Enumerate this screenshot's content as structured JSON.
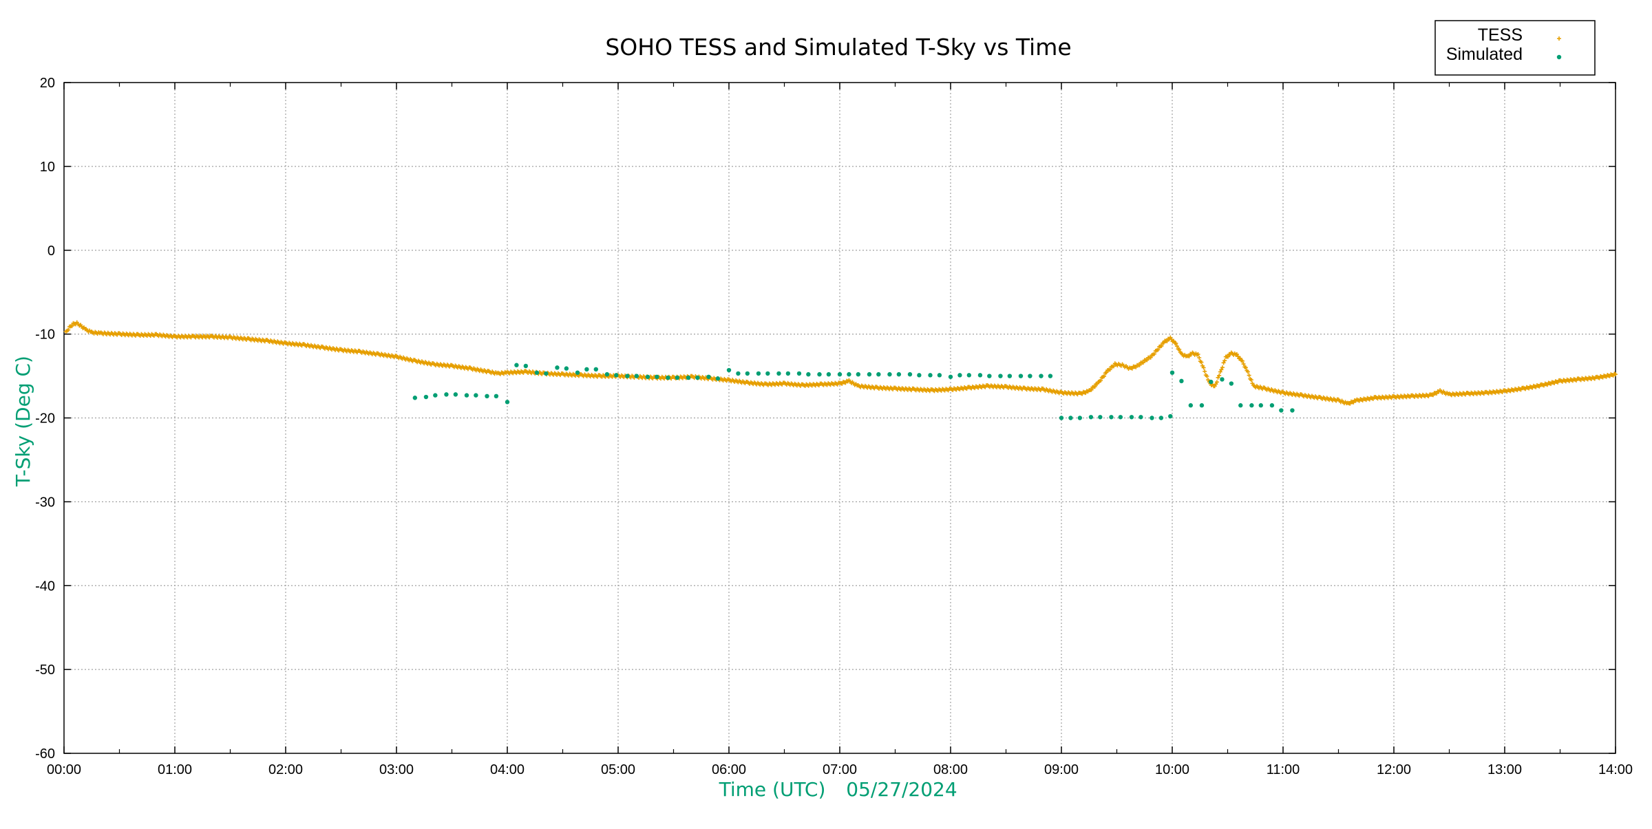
{
  "chart_data": {
    "type": "scatter",
    "title": "SOHO TESS and Simulated T-Sky vs Time",
    "xlabel": "Time (UTC)",
    "date_label": "05/27/2024",
    "ylabel": "T-Sky (Deg C)",
    "label_color": "#009e73",
    "xlim": [
      "00:00",
      "14:00"
    ],
    "ylim": [
      -60,
      20
    ],
    "x_ticks": [
      "00:00",
      "01:00",
      "02:00",
      "03:00",
      "04:00",
      "05:00",
      "06:00",
      "07:00",
      "08:00",
      "09:00",
      "10:00",
      "11:00",
      "12:00",
      "13:00",
      "14:00"
    ],
    "y_ticks": [
      20,
      10,
      0,
      -10,
      -20,
      -30,
      -40,
      -50,
      -60
    ],
    "grid": true,
    "legend_position": "top-right",
    "series": [
      {
        "name": "TESS",
        "color": "#e69f00",
        "marker": "plus",
        "points": [
          [
            "00:01",
            -9.8
          ],
          [
            "00:03",
            -9.2
          ],
          [
            "00:05",
            -8.8
          ],
          [
            "00:07",
            -8.7
          ],
          [
            "00:09",
            -9.0
          ],
          [
            "00:12",
            -9.5
          ],
          [
            "00:15",
            -9.8
          ],
          [
            "00:20",
            -9.9
          ],
          [
            "00:30",
            -10.0
          ],
          [
            "00:40",
            -10.1
          ],
          [
            "00:50",
            -10.1
          ],
          [
            "01:00",
            -10.3
          ],
          [
            "01:10",
            -10.3
          ],
          [
            "01:20",
            -10.3
          ],
          [
            "01:30",
            -10.4
          ],
          [
            "01:40",
            -10.6
          ],
          [
            "01:50",
            -10.8
          ],
          [
            "02:00",
            -11.1
          ],
          [
            "02:10",
            -11.3
          ],
          [
            "02:20",
            -11.6
          ],
          [
            "02:30",
            -11.9
          ],
          [
            "02:40",
            -12.1
          ],
          [
            "02:50",
            -12.4
          ],
          [
            "03:00",
            -12.7
          ],
          [
            "03:10",
            -13.2
          ],
          [
            "03:20",
            -13.6
          ],
          [
            "03:30",
            -13.8
          ],
          [
            "03:40",
            -14.1
          ],
          [
            "03:50",
            -14.5
          ],
          [
            "03:55",
            -14.7
          ],
          [
            "04:00",
            -14.6
          ],
          [
            "04:10",
            -14.5
          ],
          [
            "04:20",
            -14.7
          ],
          [
            "04:30",
            -14.8
          ],
          [
            "04:40",
            -14.9
          ],
          [
            "04:50",
            -15.0
          ],
          [
            "05:00",
            -15.0
          ],
          [
            "05:10",
            -15.1
          ],
          [
            "05:20",
            -15.2
          ],
          [
            "05:30",
            -15.2
          ],
          [
            "05:40",
            -15.1
          ],
          [
            "05:50",
            -15.3
          ],
          [
            "06:00",
            -15.5
          ],
          [
            "06:10",
            -15.8
          ],
          [
            "06:20",
            -16.0
          ],
          [
            "06:30",
            -15.9
          ],
          [
            "06:40",
            -16.1
          ],
          [
            "06:50",
            -16.0
          ],
          [
            "07:00",
            -15.9
          ],
          [
            "07:05",
            -15.6
          ],
          [
            "07:10",
            -16.2
          ],
          [
            "07:20",
            -16.4
          ],
          [
            "07:30",
            -16.5
          ],
          [
            "07:40",
            -16.6
          ],
          [
            "07:50",
            -16.7
          ],
          [
            "08:00",
            -16.6
          ],
          [
            "08:10",
            -16.4
          ],
          [
            "08:20",
            -16.2
          ],
          [
            "08:30",
            -16.3
          ],
          [
            "08:40",
            -16.5
          ],
          [
            "08:50",
            -16.6
          ],
          [
            "09:00",
            -17.0
          ],
          [
            "09:10",
            -17.1
          ],
          [
            "09:15",
            -16.8
          ],
          [
            "09:20",
            -15.8
          ],
          [
            "09:25",
            -14.4
          ],
          [
            "09:29",
            -13.6
          ],
          [
            "09:33",
            -13.7
          ],
          [
            "09:37",
            -14.1
          ],
          [
            "09:41",
            -13.8
          ],
          [
            "09:45",
            -13.2
          ],
          [
            "09:49",
            -12.6
          ],
          [
            "09:53",
            -11.6
          ],
          [
            "09:56",
            -10.9
          ],
          [
            "09:59",
            -10.5
          ],
          [
            "10:02",
            -11.2
          ],
          [
            "10:05",
            -12.4
          ],
          [
            "10:08",
            -12.7
          ],
          [
            "10:11",
            -12.3
          ],
          [
            "10:14",
            -12.5
          ],
          [
            "10:17",
            -14.1
          ],
          [
            "10:20",
            -15.8
          ],
          [
            "10:23",
            -16.3
          ],
          [
            "10:26",
            -14.6
          ],
          [
            "10:29",
            -12.8
          ],
          [
            "10:32",
            -12.3
          ],
          [
            "10:35",
            -12.5
          ],
          [
            "10:38",
            -13.3
          ],
          [
            "10:41",
            -14.6
          ],
          [
            "10:44",
            -16.2
          ],
          [
            "10:50",
            -16.5
          ],
          [
            "11:00",
            -17.0
          ],
          [
            "11:10",
            -17.3
          ],
          [
            "11:20",
            -17.6
          ],
          [
            "11:30",
            -17.9
          ],
          [
            "11:35",
            -18.3
          ],
          [
            "11:40",
            -17.9
          ],
          [
            "11:50",
            -17.6
          ],
          [
            "12:00",
            -17.5
          ],
          [
            "12:10",
            -17.4
          ],
          [
            "12:20",
            -17.3
          ],
          [
            "12:25",
            -16.8
          ],
          [
            "12:30",
            -17.2
          ],
          [
            "12:40",
            -17.1
          ],
          [
            "12:50",
            -17.0
          ],
          [
            "13:00",
            -16.8
          ],
          [
            "13:10",
            -16.5
          ],
          [
            "13:20",
            -16.1
          ],
          [
            "13:30",
            -15.6
          ],
          [
            "13:40",
            -15.4
          ],
          [
            "13:50",
            -15.2
          ],
          [
            "14:00",
            -14.8
          ]
        ]
      },
      {
        "name": "Simulated",
        "color": "#009e73",
        "marker": "dot",
        "points": [
          [
            "03:10",
            -17.6
          ],
          [
            "03:16",
            -17.5
          ],
          [
            "03:21",
            -17.3
          ],
          [
            "03:27",
            -17.2
          ],
          [
            "03:32",
            -17.2
          ],
          [
            "03:38",
            -17.3
          ],
          [
            "03:43",
            -17.3
          ],
          [
            "03:49",
            -17.4
          ],
          [
            "03:54",
            -17.4
          ],
          [
            "04:00",
            -18.1
          ],
          [
            "04:05",
            -13.7
          ],
          [
            "04:10",
            -13.8
          ],
          [
            "04:16",
            -14.6
          ],
          [
            "04:21",
            -14.7
          ],
          [
            "04:27",
            -14.0
          ],
          [
            "04:32",
            -14.1
          ],
          [
            "04:38",
            -14.6
          ],
          [
            "04:43",
            -14.2
          ],
          [
            "04:48",
            -14.2
          ],
          [
            "04:54",
            -14.8
          ],
          [
            "04:59",
            -14.9
          ],
          [
            "05:05",
            -15.0
          ],
          [
            "05:10",
            -15.0
          ],
          [
            "05:16",
            -15.1
          ],
          [
            "05:21",
            -15.1
          ],
          [
            "05:27",
            -15.2
          ],
          [
            "05:32",
            -15.2
          ],
          [
            "05:38",
            -15.2
          ],
          [
            "05:43",
            -15.2
          ],
          [
            "05:49",
            -15.1
          ],
          [
            "05:54",
            -15.3
          ],
          [
            "06:00",
            -14.3
          ],
          [
            "06:05",
            -14.7
          ],
          [
            "06:10",
            -14.7
          ],
          [
            "06:16",
            -14.7
          ],
          [
            "06:21",
            -14.7
          ],
          [
            "06:27",
            -14.7
          ],
          [
            "06:32",
            -14.7
          ],
          [
            "06:38",
            -14.7
          ],
          [
            "06:43",
            -14.8
          ],
          [
            "06:49",
            -14.8
          ],
          [
            "06:54",
            -14.8
          ],
          [
            "07:00",
            -14.8
          ],
          [
            "07:05",
            -14.8
          ],
          [
            "07:10",
            -14.8
          ],
          [
            "07:16",
            -14.8
          ],
          [
            "07:21",
            -14.8
          ],
          [
            "07:27",
            -14.8
          ],
          [
            "07:32",
            -14.8
          ],
          [
            "07:38",
            -14.8
          ],
          [
            "07:43",
            -14.9
          ],
          [
            "07:49",
            -14.9
          ],
          [
            "07:54",
            -14.9
          ],
          [
            "08:00",
            -15.1
          ],
          [
            "08:05",
            -14.9
          ],
          [
            "08:10",
            -14.9
          ],
          [
            "08:16",
            -14.9
          ],
          [
            "08:21",
            -15.0
          ],
          [
            "08:27",
            -15.0
          ],
          [
            "08:32",
            -15.0
          ],
          [
            "08:38",
            -15.0
          ],
          [
            "08:43",
            -15.0
          ],
          [
            "08:49",
            -15.0
          ],
          [
            "08:54",
            -15.0
          ],
          [
            "09:00",
            -20.0
          ],
          [
            "09:05",
            -20.0
          ],
          [
            "09:10",
            -20.0
          ],
          [
            "09:16",
            -19.9
          ],
          [
            "09:21",
            -19.9
          ],
          [
            "09:27",
            -19.9
          ],
          [
            "09:32",
            -19.9
          ],
          [
            "09:38",
            -19.9
          ],
          [
            "09:43",
            -19.9
          ],
          [
            "09:49",
            -20.0
          ],
          [
            "09:54",
            -20.0
          ],
          [
            "09:59",
            -19.8
          ],
          [
            "10:00",
            -14.6
          ],
          [
            "10:05",
            -15.6
          ],
          [
            "10:10",
            -18.5
          ],
          [
            "10:16",
            -18.5
          ],
          [
            "10:21",
            -15.7
          ],
          [
            "10:27",
            -15.4
          ],
          [
            "10:32",
            -15.9
          ],
          [
            "10:37",
            -18.5
          ],
          [
            "10:43",
            -18.5
          ],
          [
            "10:48",
            -18.5
          ],
          [
            "10:54",
            -18.5
          ],
          [
            "10:59",
            -19.1
          ],
          [
            "11:05",
            -19.1
          ]
        ]
      }
    ]
  }
}
